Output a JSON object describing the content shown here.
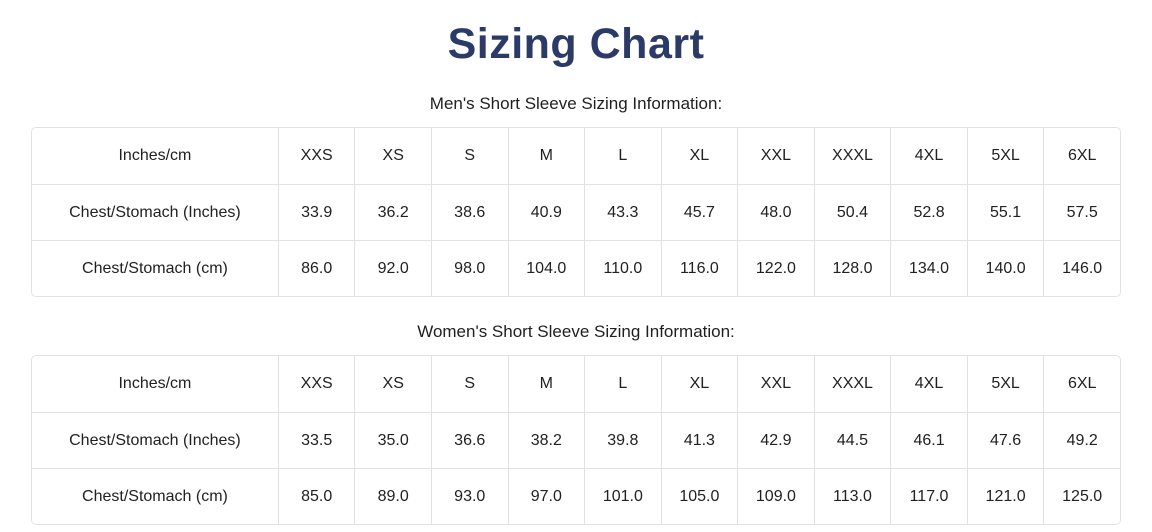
{
  "page": {
    "title": "Sizing Chart",
    "title_color": "#2b3a67",
    "table_border_color": "#e2e2e2"
  },
  "tables": [
    {
      "caption": "Men's Short Sleeve Sizing Information:",
      "header": [
        "Inches/cm",
        "XXS",
        "XS",
        "S",
        "M",
        "L",
        "XL",
        "XXL",
        "XXXL",
        "4XL",
        "5XL",
        "6XL"
      ],
      "rows": [
        {
          "label": "Chest/Stomach (Inches)",
          "values": [
            "33.9",
            "36.2",
            "38.6",
            "40.9",
            "43.3",
            "45.7",
            "48.0",
            "50.4",
            "52.8",
            "55.1",
            "57.5"
          ]
        },
        {
          "label": "Chest/Stomach (cm)",
          "values": [
            "86.0",
            "92.0",
            "98.0",
            "104.0",
            "110.0",
            "116.0",
            "122.0",
            "128.0",
            "134.0",
            "140.0",
            "146.0"
          ]
        }
      ]
    },
    {
      "caption": "Women's Short Sleeve Sizing Information:",
      "header": [
        "Inches/cm",
        "XXS",
        "XS",
        "S",
        "M",
        "L",
        "XL",
        "XXL",
        "XXXL",
        "4XL",
        "5XL",
        "6XL"
      ],
      "rows": [
        {
          "label": "Chest/Stomach (Inches)",
          "values": [
            "33.5",
            "35.0",
            "36.6",
            "38.2",
            "39.8",
            "41.3",
            "42.9",
            "44.5",
            "46.1",
            "47.6",
            "49.2"
          ]
        },
        {
          "label": "Chest/Stomach (cm)",
          "values": [
            "85.0",
            "89.0",
            "93.0",
            "97.0",
            "101.0",
            "105.0",
            "109.0",
            "113.0",
            "117.0",
            "121.0",
            "125.0"
          ]
        }
      ]
    }
  ]
}
